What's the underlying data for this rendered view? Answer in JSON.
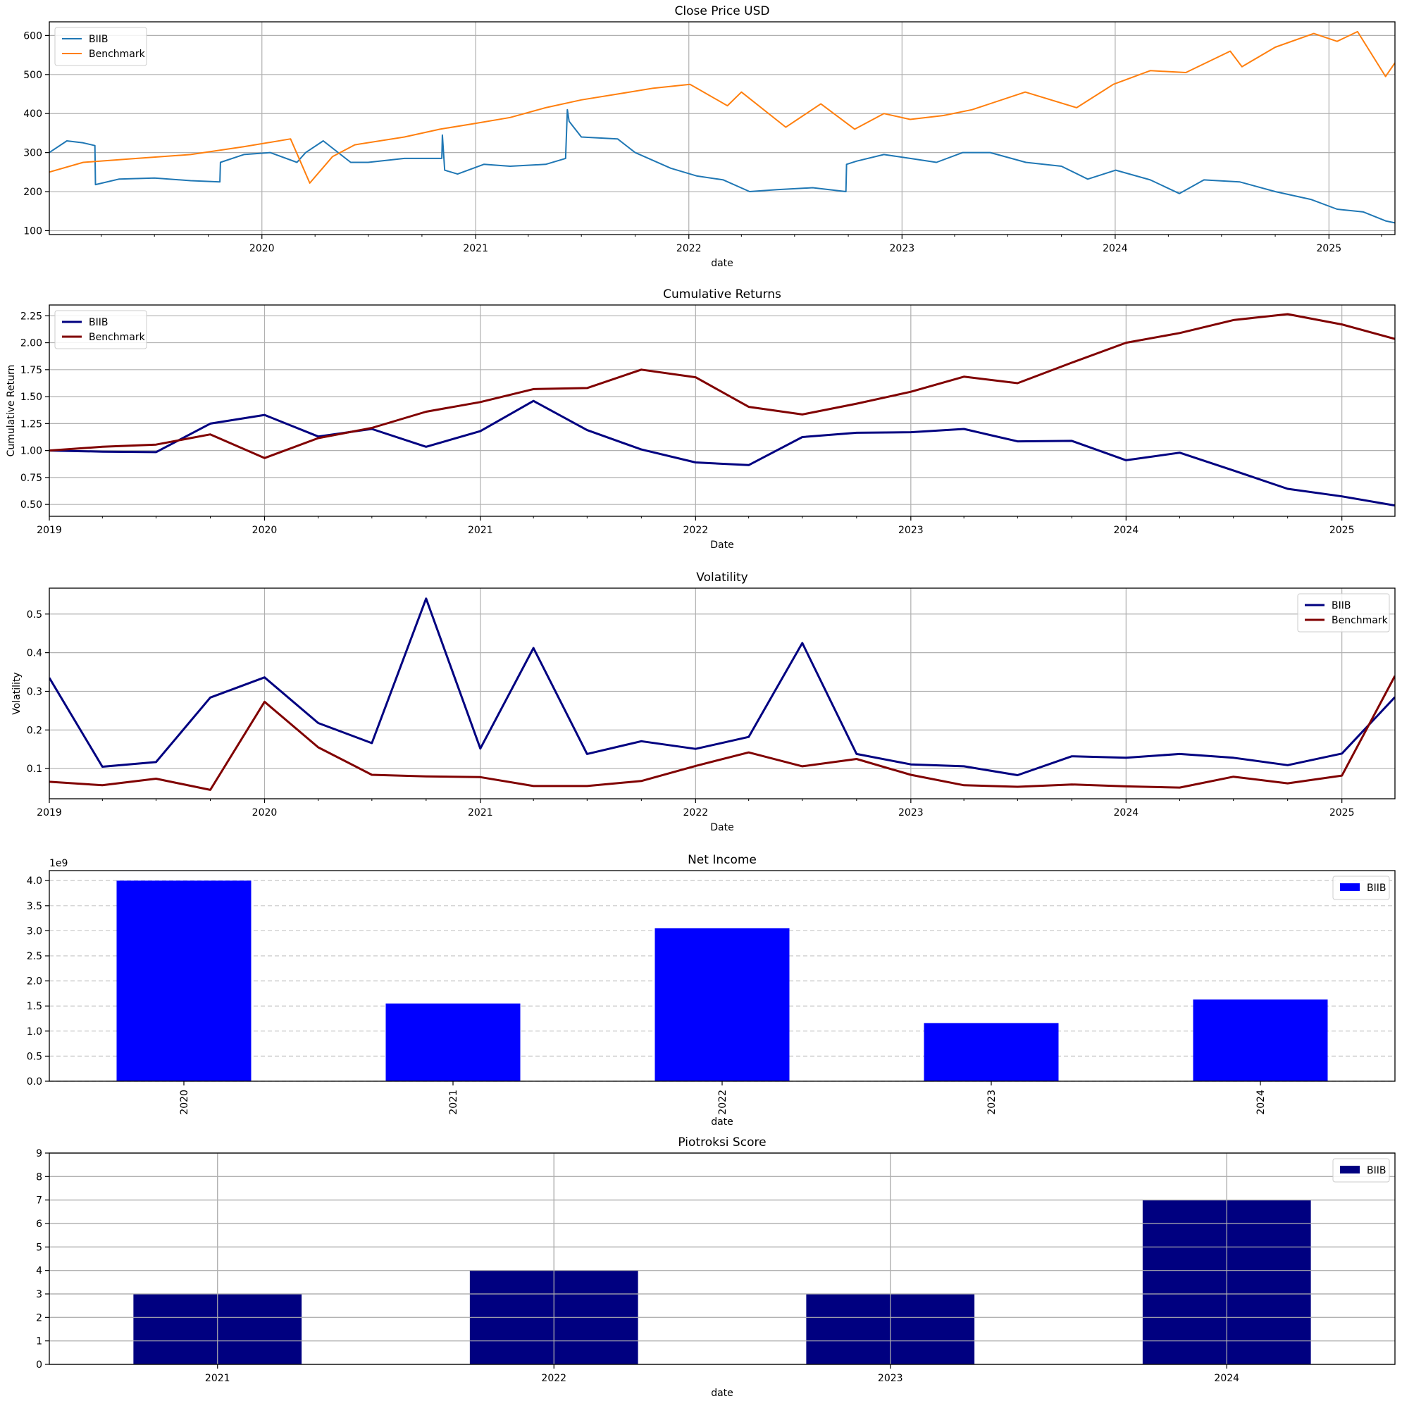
{
  "chart_data": [
    {
      "type": "line",
      "title": "Close Price USD",
      "xlabel": "date",
      "ylabel": "",
      "ylim": [
        90,
        635
      ],
      "yticks": [
        100,
        200,
        300,
        400,
        500,
        600
      ],
      "xlim": [
        "2019-01-02",
        "2025-04-24"
      ],
      "xticks": [
        "2020",
        "2021",
        "2022",
        "2023",
        "2024",
        "2025"
      ],
      "grid": true,
      "legend": "top-left",
      "series": [
        {
          "name": "BIIB",
          "color": "#1f77b4",
          "x": [
            "2019-01-02",
            "2019-02-01",
            "2019-03-01",
            "2019-03-21",
            "2019-03-22",
            "2019-05-01",
            "2019-07-01",
            "2019-09-01",
            "2019-10-21",
            "2019-10-22",
            "2019-12-01",
            "2020-01-15",
            "2020-03-01",
            "2020-03-16",
            "2020-04-15",
            "2020-06-01",
            "2020-07-01",
            "2020-09-01",
            "2020-11-04",
            "2020-11-05",
            "2020-11-09",
            "2020-12-01",
            "2021-01-15",
            "2021-03-01",
            "2021-05-01",
            "2021-06-04",
            "2021-06-07",
            "2021-06-10",
            "2021-07-01",
            "2021-09-01",
            "2021-10-01",
            "2021-12-01",
            "2022-01-15",
            "2022-03-01",
            "2022-04-15",
            "2022-06-01",
            "2022-08-01",
            "2022-09-27",
            "2022-09-28",
            "2022-10-15",
            "2022-12-01",
            "2023-01-15",
            "2023-03-01",
            "2023-04-15",
            "2023-06-01",
            "2023-08-01",
            "2023-10-01",
            "2023-11-15",
            "2024-01-02",
            "2024-03-01",
            "2024-04-20",
            "2024-06-01",
            "2024-08-01",
            "2024-10-01",
            "2024-12-01",
            "2025-01-15",
            "2025-03-01",
            "2025-04-08",
            "2025-04-24"
          ],
          "values": [
            300,
            330,
            325,
            318,
            218,
            232,
            235,
            228,
            225,
            275,
            295,
            300,
            275,
            300,
            330,
            275,
            275,
            285,
            285,
            345,
            255,
            245,
            270,
            265,
            270,
            285,
            410,
            380,
            340,
            335,
            300,
            260,
            240,
            230,
            200,
            205,
            210,
            200,
            270,
            278,
            295,
            285,
            275,
            300,
            300,
            275,
            265,
            232,
            255,
            230,
            195,
            230,
            225,
            200,
            180,
            155,
            148,
            125,
            120
          ]
        },
        {
          "name": "Benchmark",
          "color": "#ff7f0e",
          "x": [
            "2019-01-02",
            "2019-03-01",
            "2019-06-01",
            "2019-09-01",
            "2019-12-01",
            "2020-02-19",
            "2020-03-23",
            "2020-05-01",
            "2020-06-08",
            "2020-09-01",
            "2020-11-01",
            "2021-01-01",
            "2021-03-01",
            "2021-05-01",
            "2021-07-01",
            "2021-09-01",
            "2021-11-01",
            "2022-01-03",
            "2022-03-08",
            "2022-04-01",
            "2022-06-16",
            "2022-08-15",
            "2022-10-12",
            "2022-12-01",
            "2023-01-15",
            "2023-03-13",
            "2023-05-01",
            "2023-07-31",
            "2023-10-27",
            "2023-12-29",
            "2024-03-01",
            "2024-05-01",
            "2024-07-16",
            "2024-08-05",
            "2024-10-01",
            "2024-12-06",
            "2025-01-15",
            "2025-02-19",
            "2025-04-08",
            "2025-04-24"
          ],
          "values": [
            250,
            275,
            285,
            295,
            315,
            335,
            222,
            290,
            320,
            340,
            360,
            375,
            390,
            415,
            435,
            450,
            465,
            475,
            420,
            455,
            365,
            425,
            360,
            400,
            385,
            395,
            410,
            455,
            415,
            475,
            510,
            505,
            560,
            520,
            570,
            605,
            585,
            610,
            495,
            530
          ]
        }
      ]
    },
    {
      "type": "line",
      "title": "Cumulative Returns",
      "xlabel": "Date",
      "ylabel": "Cumulative Return",
      "ylim": [
        0.39,
        2.35
      ],
      "yticks": [
        "0.50",
        "0.75",
        "1.00",
        "1.25",
        "1.50",
        "1.75",
        "2.00",
        "2.25"
      ],
      "xlim": [
        "2019-01-01",
        "2025-04-01"
      ],
      "xticks": [
        "2019",
        "2020",
        "2021",
        "2022",
        "2023",
        "2024",
        "2025"
      ],
      "grid": true,
      "legend": "top-left",
      "series": [
        {
          "name": "BIIB",
          "color": "#000080",
          "x": [
            "2019-01-01",
            "2019-04-01",
            "2019-07-01",
            "2019-10-01",
            "2020-01-01",
            "2020-04-01",
            "2020-07-01",
            "2020-10-01",
            "2021-01-01",
            "2021-04-01",
            "2021-07-01",
            "2021-10-01",
            "2022-01-01",
            "2022-04-01",
            "2022-07-01",
            "2022-10-01",
            "2023-01-01",
            "2023-04-01",
            "2023-07-01",
            "2023-10-01",
            "2024-01-01",
            "2024-04-01",
            "2024-07-01",
            "2024-10-01",
            "2025-01-01",
            "2025-04-01"
          ],
          "values": [
            1.0,
            0.99,
            0.985,
            1.25,
            1.33,
            1.13,
            1.2,
            1.035,
            1.18,
            1.46,
            1.19,
            1.01,
            0.89,
            0.865,
            1.125,
            1.165,
            1.17,
            1.2,
            1.085,
            1.09,
            0.91,
            0.98,
            0.815,
            0.645,
            0.575,
            0.49
          ]
        },
        {
          "name": "Benchmark",
          "color": "#800000",
          "x": [
            "2019-01-01",
            "2019-04-01",
            "2019-07-01",
            "2019-10-01",
            "2020-01-01",
            "2020-04-01",
            "2020-07-01",
            "2020-10-01",
            "2021-01-01",
            "2021-04-01",
            "2021-07-01",
            "2021-10-01",
            "2022-01-01",
            "2022-04-01",
            "2022-07-01",
            "2022-10-01",
            "2023-01-01",
            "2023-04-01",
            "2023-07-01",
            "2023-10-01",
            "2024-01-01",
            "2024-04-01",
            "2024-07-01",
            "2024-10-01",
            "2025-01-01",
            "2025-04-01"
          ],
          "values": [
            1.0,
            1.035,
            1.055,
            1.15,
            0.93,
            1.115,
            1.21,
            1.36,
            1.45,
            1.57,
            1.58,
            1.75,
            1.68,
            1.405,
            1.335,
            1.435,
            1.545,
            1.685,
            1.625,
            1.815,
            2.0,
            2.09,
            2.21,
            2.265,
            2.17,
            2.035
          ]
        }
      ]
    },
    {
      "type": "line",
      "title": "Volatility",
      "xlabel": "Date",
      "ylabel": "Volatility",
      "ylim": [
        0.022,
        0.567
      ],
      "yticks": [
        "0.1",
        "0.2",
        "0.3",
        "0.4",
        "0.5"
      ],
      "xlim": [
        "2019-01-01",
        "2025-04-01"
      ],
      "xticks": [
        "2019",
        "2020",
        "2021",
        "2022",
        "2023",
        "2024",
        "2025"
      ],
      "grid": true,
      "legend": "top-right",
      "series": [
        {
          "name": "BIIB",
          "color": "#000080",
          "x": [
            "2019-01-01",
            "2019-04-01",
            "2019-07-01",
            "2019-10-01",
            "2020-01-01",
            "2020-04-01",
            "2020-07-01",
            "2020-10-01",
            "2021-01-01",
            "2021-04-01",
            "2021-07-01",
            "2021-10-01",
            "2022-01-01",
            "2022-04-01",
            "2022-07-01",
            "2022-10-01",
            "2023-01-01",
            "2023-04-01",
            "2023-07-01",
            "2023-10-01",
            "2024-01-01",
            "2024-04-01",
            "2024-07-01",
            "2024-10-01",
            "2025-01-01",
            "2025-04-01"
          ],
          "values": [
            0.335,
            0.105,
            0.117,
            0.284,
            0.336,
            0.218,
            0.166,
            0.54,
            0.152,
            0.412,
            0.138,
            0.171,
            0.151,
            0.182,
            0.425,
            0.138,
            0.111,
            0.106,
            0.083,
            0.132,
            0.128,
            0.138,
            0.128,
            0.109,
            0.139,
            0.285
          ]
        },
        {
          "name": "Benchmark",
          "color": "#800000",
          "x": [
            "2019-01-01",
            "2019-04-01",
            "2019-07-01",
            "2019-10-01",
            "2020-01-01",
            "2020-04-01",
            "2020-07-01",
            "2020-10-01",
            "2021-01-01",
            "2021-04-01",
            "2021-07-01",
            "2021-10-01",
            "2022-01-01",
            "2022-04-01",
            "2022-07-01",
            "2022-10-01",
            "2023-01-01",
            "2023-04-01",
            "2023-07-01",
            "2023-10-01",
            "2024-01-01",
            "2024-04-01",
            "2024-07-01",
            "2024-10-01",
            "2025-01-01",
            "2025-04-01"
          ],
          "values": [
            0.066,
            0.057,
            0.074,
            0.045,
            0.273,
            0.155,
            0.084,
            0.08,
            0.078,
            0.055,
            0.055,
            0.068,
            0.107,
            0.142,
            0.106,
            0.125,
            0.084,
            0.057,
            0.053,
            0.059,
            0.054,
            0.051,
            0.079,
            0.062,
            0.082,
            0.34
          ]
        }
      ]
    },
    {
      "type": "bar",
      "title": "Net Income",
      "xlabel": "date",
      "ylabel": "",
      "offset_label": "1e9",
      "ylim": [
        0,
        4.2
      ],
      "yticks": [
        "0.0",
        "0.5",
        "1.0",
        "1.5",
        "2.0",
        "2.5",
        "3.0",
        "3.5",
        "4.0"
      ],
      "grid": "y-dashed",
      "legend": "top-right",
      "categories": [
        "2020",
        "2021",
        "2022",
        "2023",
        "2024"
      ],
      "series": [
        {
          "name": "BIIB",
          "color": "#0000ff",
          "values": [
            4.0,
            1.55,
            3.05,
            1.16,
            1.63
          ]
        }
      ]
    },
    {
      "type": "bar",
      "title": "Piotroksi Score",
      "xlabel": "date",
      "ylabel": "",
      "ylim": [
        0,
        9
      ],
      "yticks": [
        "0",
        "1",
        "2",
        "3",
        "4",
        "5",
        "6",
        "7",
        "8",
        "9"
      ],
      "grid": true,
      "legend": "top-right",
      "categories": [
        "2021",
        "2022",
        "2023",
        "2024"
      ],
      "series": [
        {
          "name": "BIIB",
          "color": "#000080",
          "values": [
            3,
            4,
            3,
            7
          ]
        }
      ]
    }
  ]
}
